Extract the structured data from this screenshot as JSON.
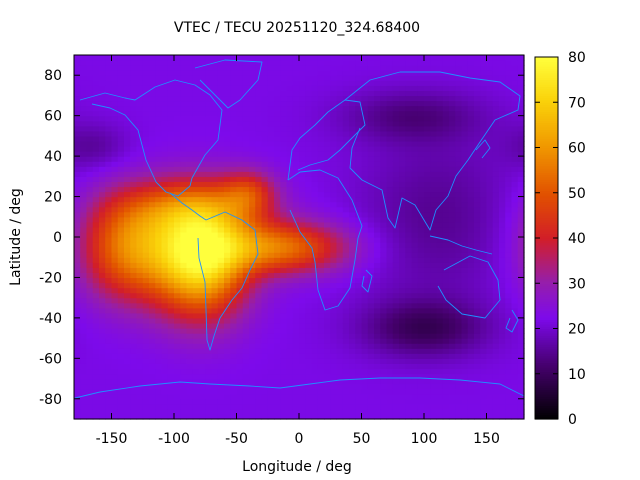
{
  "chart_data": {
    "type": "heatmap",
    "title": "VTEC / TECU 20251120_324.68400",
    "xlabel": "Longitude / deg",
    "ylabel": "Latitude / deg",
    "xlim": [
      -180,
      180
    ],
    "ylim": [
      -90,
      90
    ],
    "xticks": [
      -150,
      -100,
      -50,
      0,
      50,
      100,
      150
    ],
    "yticks": [
      -80,
      -60,
      -40,
      -20,
      0,
      20,
      40,
      60,
      80
    ],
    "colorbar": {
      "range": [
        0,
        80
      ],
      "ticks": [
        0,
        10,
        20,
        30,
        40,
        50,
        60,
        70,
        80
      ],
      "palette": "black-purple-red-yellow"
    },
    "background_value": 22,
    "field_components": [
      {
        "name": "pacific-enhancement",
        "lon": -135,
        "lat": -5,
        "sigma_lon": 28,
        "sigma_lat": 18,
        "value": 34
      },
      {
        "name": "south-america-crest",
        "lon": -78,
        "lat": -10,
        "sigma_lon": 26,
        "sigma_lat": 20,
        "value": 52
      },
      {
        "name": "north-crest",
        "lon": -85,
        "lat": 15,
        "sigma_lon": 40,
        "sigma_lat": 10,
        "value": 18
      },
      {
        "name": "atlantic-tongue",
        "lon": -15,
        "lat": -5,
        "sigma_lon": 38,
        "sigma_lat": 9,
        "value": 32
      },
      {
        "name": "atlantic-north-lobe",
        "lon": -40,
        "lat": 22,
        "sigma_lon": 15,
        "sigma_lat": 8,
        "value": 18
      },
      {
        "name": "asia-night-minimum",
        "lon": 110,
        "lat": 10,
        "sigma_lon": 45,
        "sigma_lat": 30,
        "value": -7
      },
      {
        "name": "indian-ocean-minimum",
        "lon": 100,
        "lat": -45,
        "sigma_lon": 35,
        "sigma_lat": 10,
        "value": -12
      },
      {
        "name": "siberia-minimum",
        "lon": 90,
        "lat": 60,
        "sigma_lon": 40,
        "sigma_lat": 9,
        "value": -8
      },
      {
        "name": "pacific-north-minimum",
        "lon": -165,
        "lat": 45,
        "sigma_lon": 20,
        "sigma_lat": 8,
        "value": -6
      }
    ]
  }
}
